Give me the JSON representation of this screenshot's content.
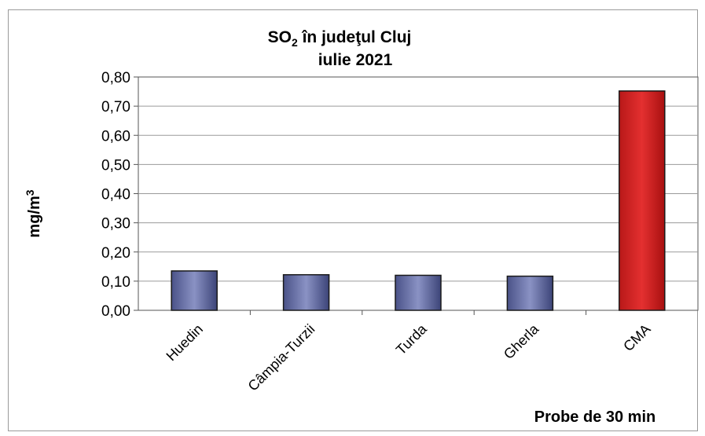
{
  "chart_data": {
    "type": "bar",
    "title_main": "SO",
    "title_sub": "2",
    "title_rest": " în judeţul Cluj",
    "title_line2": "iulie 2021",
    "ylabel_main": "mg/m",
    "ylabel_sup": "3",
    "xlabel": "Probe de 30 min",
    "categories": [
      "Huedin",
      "Câmpia-Turzii",
      "Turda",
      "Gherla",
      "CMA"
    ],
    "values": [
      0.135,
      0.122,
      0.12,
      0.117,
      0.752
    ],
    "bar_colors": [
      "#7078a8",
      "#7078a8",
      "#7078a8",
      "#7078a8",
      "#d62020"
    ],
    "ylim": [
      0,
      0.8
    ],
    "yticks": [
      "0,00",
      "0,10",
      "0,20",
      "0,30",
      "0,40",
      "0,50",
      "0,60",
      "0,70",
      "0,80"
    ],
    "grid": true,
    "legend": "none"
  }
}
